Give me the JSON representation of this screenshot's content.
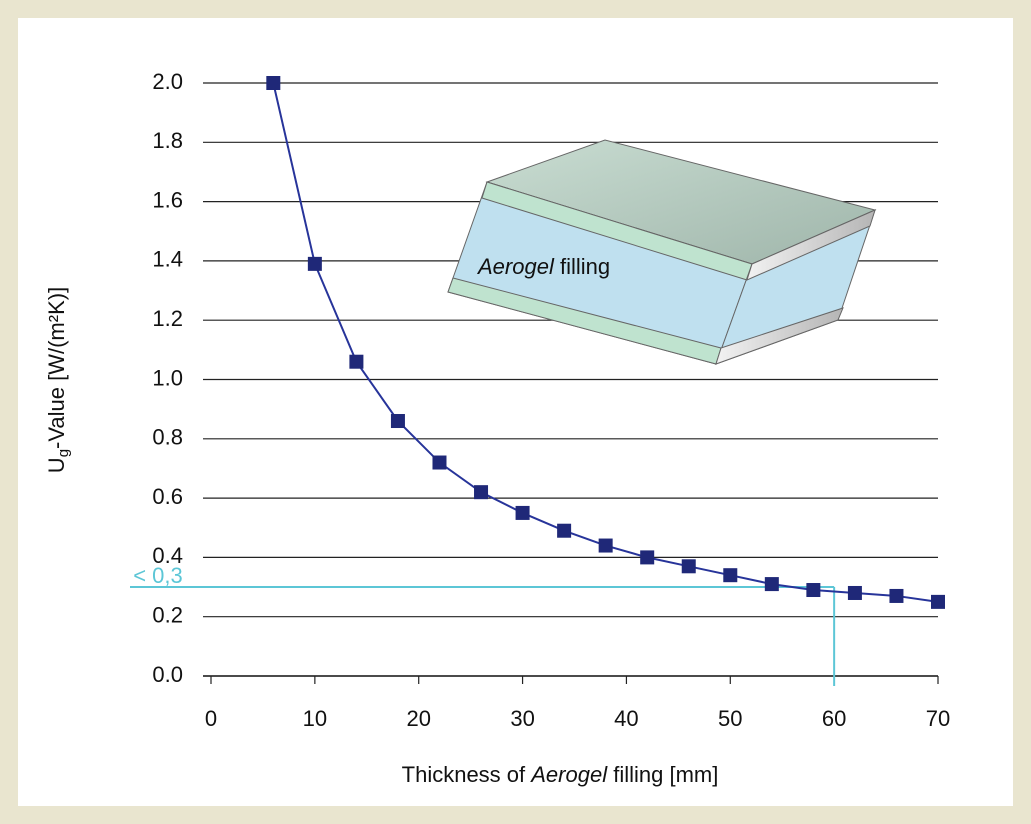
{
  "chart_data": {
    "type": "line",
    "y_label": {
      "main": "U",
      "sub": "g",
      "rest": "-Value [W/(m²K)]"
    },
    "x_label": [
      "Thickness of ",
      "Aerogel",
      " filling [mm]"
    ],
    "inset_label": [
      "Aerogel",
      " filling"
    ],
    "x": [
      6,
      10,
      14,
      18,
      22,
      26,
      30,
      34,
      38,
      42,
      46,
      50,
      54,
      58,
      62,
      66,
      70
    ],
    "series": [
      {
        "color": "#27349a",
        "marker_color": "#1f2878",
        "values": [
          2.0,
          1.39,
          1.06,
          0.86,
          0.72,
          0.62,
          0.55,
          0.49,
          0.44,
          0.4,
          0.37,
          0.34,
          0.31,
          0.29,
          0.28,
          0.27,
          0.25
        ]
      }
    ],
    "xlim": [
      0,
      70
    ],
    "xticks": [
      0,
      10,
      20,
      30,
      40,
      50,
      60,
      70
    ],
    "ylim": [
      0,
      2.0
    ],
    "yticks": [
      {
        "value": 0,
        "label": "0.0"
      },
      {
        "value": 0.2,
        "label": "0.2"
      },
      {
        "value": 0.4,
        "label": "0.4"
      },
      {
        "value": 0.6,
        "label": "0.6"
      },
      {
        "value": 0.8,
        "label": "0.8"
      },
      {
        "value": 1.0,
        "label": "1.0"
      },
      {
        "value": 1.2,
        "label": "1.2"
      },
      {
        "value": 1.4,
        "label": "1.4"
      },
      {
        "value": 1.6,
        "label": "1.6"
      },
      {
        "value": 1.8,
        "label": "1.8"
      },
      {
        "value": 2.0,
        "label": "2.0"
      }
    ],
    "grid": true,
    "annotation": {
      "label": "< 0,3",
      "x": 60,
      "y": 0.3,
      "color": "#5cc6d6"
    }
  }
}
